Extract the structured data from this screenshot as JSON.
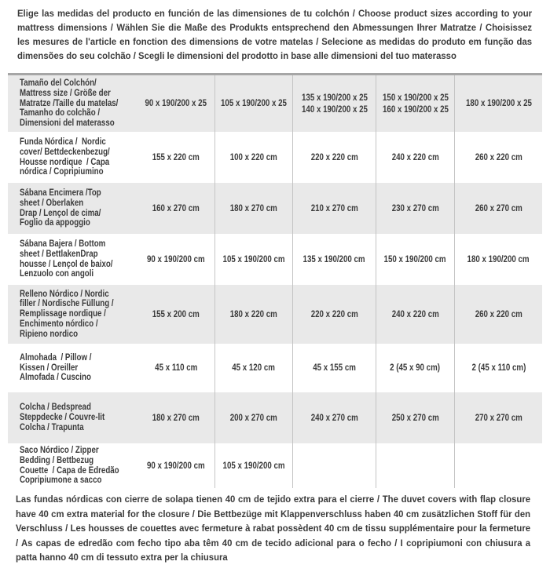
{
  "page": {
    "intro": "Elige las medidas del producto en función de las dimensiones de tu colchón / Choose product sizes according to your mattress dimensions / Wählen Sie die Maße des Produkts entsprechend den Abmessungen Ihrer Matratze / Choisissez les mesures de l'article en fonction des dimensions de votre matelas / Selecione as medidas do produto em função das dimensões do seu colchão / Scegli le dimensioni del prodotto in base alle dimensioni del tuo materasso",
    "note": "Las fundas nórdicas con cierre de solapa tienen 40 cm de tejido extra para el cierre  / The duvet covers with flap closure have 40 cm extra material for the closure / Die Bettbezüge mit Klappenverschluss haben 40 cm zusätzlichen Stoff für den Verschluss / Les housses de couettes avec fermeture à rabat possèdent 40 cm de tissu supplémentaire pour la fermeture / As capas de edredão com fecho tipo aba têm 40 cm de tecido adicional para o fecho / I copripiumoni con chiusura a patta hanno 40 cm di tessuto extra per la chiusura"
  },
  "colors": {
    "row_stripe": "#e9e9e9",
    "divider": "#c4c4c4",
    "table_top_border": "#a6a6a6",
    "text": "#3b3b3b"
  },
  "table": {
    "rows": [
      {
        "product": [
          "Tamaño del Colchón/",
          "Mattress size / Größe der",
          "Matratze /Taille du matelas/",
          "Tamanho do colchão /",
          "Dimensioni del materasso"
        ],
        "sizes": [
          [
            "90 x 190/200 x 25"
          ],
          [
            "105 x 190/200 x 25"
          ],
          [
            "135 x 190/200 x 25",
            "140 x 190/200 x 25"
          ],
          [
            "150 x 190/200 x 25",
            "160 x 190/200 x 25"
          ],
          [
            "180 x 190/200 x 25"
          ]
        ]
      },
      {
        "product": [
          "Funda Nórdica /  Nordic",
          "cover/ Bettdeckenbezug/",
          "Housse nordique  / Capa",
          "nórdica / Copripiumino"
        ],
        "sizes": [
          [
            "155 x 220 cm"
          ],
          [
            "100 x 220 cm"
          ],
          [
            "220 x 220 cm"
          ],
          [
            "240 x 220 cm"
          ],
          [
            "260 x 220 cm"
          ]
        ]
      },
      {
        "product": [
          "Sábana Encimera /Top",
          "sheet / Oberlaken",
          "Drap / Lençol de cima/",
          "Foglio da appoggio"
        ],
        "sizes": [
          [
            "160 x 270 cm"
          ],
          [
            "180 x 270 cm"
          ],
          [
            "210 x 270 cm"
          ],
          [
            "230 x 270 cm"
          ],
          [
            "260 x 270 cm"
          ]
        ]
      },
      {
        "product": [
          "Sábana Bajera / Bottom",
          "sheet / BettlakenDrap",
          "housse / Lençol de baixo/",
          "Lenzuolo con angoli"
        ],
        "sizes": [
          [
            "90 x 190/200 cm"
          ],
          [
            "105 x 190/200 cm"
          ],
          [
            "135 x 190/200 cm"
          ],
          [
            "150 x 190/200 cm"
          ],
          [
            "180 x 190/200 cm"
          ]
        ]
      },
      {
        "product": [
          "Relleno Nórdico / Nordic",
          "filler / Nordische Füllung /",
          "Remplissage nordique /",
          "Enchimento nórdico /",
          "Ripieno nordico"
        ],
        "sizes": [
          [
            "155 x 200 cm"
          ],
          [
            "180 x 220 cm"
          ],
          [
            "220 x 220 cm"
          ],
          [
            "240 x 220 cm"
          ],
          [
            "260 x 220 cm"
          ]
        ]
      },
      {
        "product": [
          "Almohada  / Pillow /",
          "Kissen / Oreiller",
          "Almofada / Cuscino"
        ],
        "sizes": [
          [
            "45 x 110 cm"
          ],
          [
            "45 x 120 cm"
          ],
          [
            "45 x 155 cm"
          ],
          [
            "2 (45 x 90 cm)"
          ],
          [
            "2 (45 x 110 cm)"
          ]
        ]
      },
      {
        "product": [
          "Colcha / Bedspread",
          "Steppdecke / Couvre-lit",
          "Colcha / Trapunta"
        ],
        "sizes": [
          [
            "180 x 270 cm"
          ],
          [
            "200 x 270 cm"
          ],
          [
            "240 x 270 cm"
          ],
          [
            "250 x 270 cm"
          ],
          [
            "270 x 270 cm"
          ]
        ]
      },
      {
        "product": [
          "Saco Nórdico / Zipper",
          "Bedding / Bettbezug",
          "Couette  / Capa de Edredão",
          "Copripiumone a sacco"
        ],
        "sizes": [
          [
            "90 x 190/200 cm"
          ],
          [
            "105 x 190/200 cm"
          ],
          [],
          [],
          []
        ]
      }
    ]
  }
}
